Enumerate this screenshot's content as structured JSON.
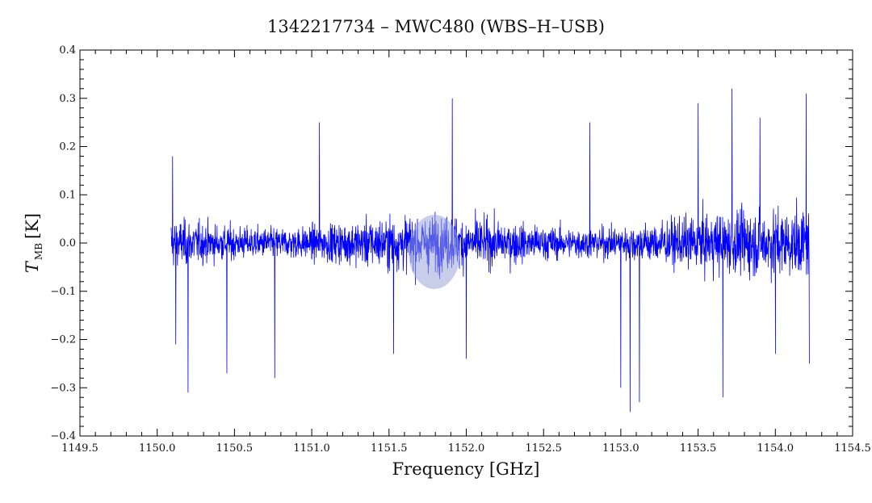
{
  "chart_data": {
    "type": "line",
    "title": "1342217734 – MWC480 (WBS–H–USB)",
    "xlabel": "Frequency [GHz]",
    "ylabel": {
      "symbol": "T",
      "subscript": "MB",
      "unit": "[K]"
    },
    "xlim": [
      1149.5,
      1154.5
    ],
    "ylim": [
      -0.4,
      0.4
    ],
    "xticks": [
      "1149.5",
      "1150.0",
      "1150.5",
      "1151.0",
      "1151.5",
      "1152.0",
      "1152.5",
      "1153.0",
      "1153.5",
      "1154.0",
      "1154.5"
    ],
    "yticks": [
      "−0.4",
      "−0.3",
      "−0.2",
      "−0.1",
      "0.0",
      "0.1",
      "0.2",
      "0.3",
      "0.4"
    ],
    "grid": false,
    "series": [
      {
        "color": "#0000ff",
        "x_range": [
          1150.09,
          1154.22
        ],
        "notes_points": "noise spectrum, roughly ±0.15 K with spikes up to about ±0.35 K",
        "peaks": [
          {
            "x": 1150.1,
            "y": 0.18
          },
          {
            "x": 1150.12,
            "y": -0.21
          },
          {
            "x": 1150.2,
            "y": -0.31
          },
          {
            "x": 1150.45,
            "y": -0.27
          },
          {
            "x": 1150.76,
            "y": -0.28
          },
          {
            "x": 1151.05,
            "y": 0.25
          },
          {
            "x": 1151.53,
            "y": -0.23
          },
          {
            "x": 1151.91,
            "y": 0.3
          },
          {
            "x": 1152.0,
            "y": -0.24
          },
          {
            "x": 1152.8,
            "y": 0.25
          },
          {
            "x": 1153.0,
            "y": -0.3
          },
          {
            "x": 1153.06,
            "y": -0.35
          },
          {
            "x": 1153.12,
            "y": -0.33
          },
          {
            "x": 1153.5,
            "y": 0.29
          },
          {
            "x": 1153.66,
            "y": -0.32
          },
          {
            "x": 1153.72,
            "y": 0.32
          },
          {
            "x": 1153.9,
            "y": 0.26
          },
          {
            "x": 1154.0,
            "y": -0.23
          },
          {
            "x": 1154.2,
            "y": 0.31
          },
          {
            "x": 1154.22,
            "y": -0.25
          }
        ]
      }
    ]
  }
}
